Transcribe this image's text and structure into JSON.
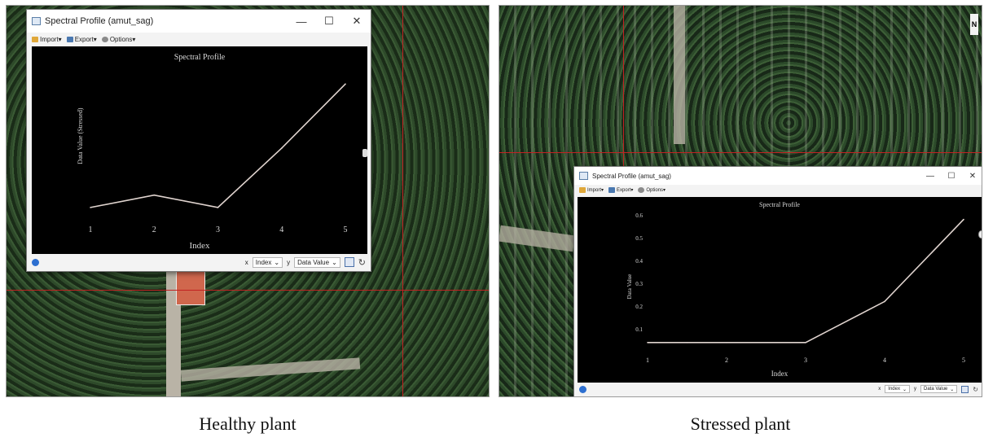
{
  "panels": [
    {
      "window": {
        "title": "Spectral Profile (amut_sag)",
        "controls": {
          "minimize": "—",
          "maximize": "☐",
          "close": "✕"
        },
        "toolbar": {
          "import": "Import▾",
          "export": "Export▾",
          "options": "Options▾"
        },
        "statusbar": {
          "x_tag": "x",
          "x_value": "Index",
          "y_tag": "y",
          "y_value": "Data Value"
        }
      },
      "caption": "Healthy plant"
    },
    {
      "window": {
        "title": "Spectral Profile (amut_sag)",
        "controls": {
          "minimize": "—",
          "maximize": "☐",
          "close": "✕"
        },
        "toolbar": {
          "import": "Import▾",
          "export": "Export▾",
          "options": "Options▾"
        },
        "statusbar": {
          "x_tag": "x",
          "x_value": "Index",
          "y_tag": "y",
          "y_value": "Data Value"
        }
      },
      "caption": "Stressed plant"
    }
  ],
  "compass_label": "N",
  "chart_data": [
    {
      "type": "line",
      "title": "Spectral Profile",
      "xlabel": "Index",
      "ylabel": "Data Value (Stressed)",
      "x": [
        1,
        2,
        3,
        4,
        5
      ],
      "series": [
        {
          "values": [
            0.04,
            0.09,
            0.04,
            0.28,
            0.54
          ]
        }
      ],
      "y_ticks_shown": false,
      "ylim": [
        0,
        0.6
      ],
      "line_color": "#e0d4cf"
    },
    {
      "type": "line",
      "title": "Spectral Profile",
      "xlabel": "Index",
      "ylabel": "Data Value",
      "x": [
        1,
        1.5,
        2,
        3,
        4,
        5
      ],
      "series": [
        {
          "values": [
            0.04,
            0.04,
            0.04,
            0.04,
            0.22,
            0.58
          ]
        }
      ],
      "yticks": [
        "0.1",
        "0.2",
        "0.3",
        "0.4",
        "0.5",
        "0.6"
      ],
      "ylim": [
        0,
        0.6
      ],
      "line_color": "#e0d4cf"
    }
  ],
  "colors": {
    "crosshair": "#c22222",
    "plot_bg": "#000000",
    "line": "#e0d4cf"
  }
}
